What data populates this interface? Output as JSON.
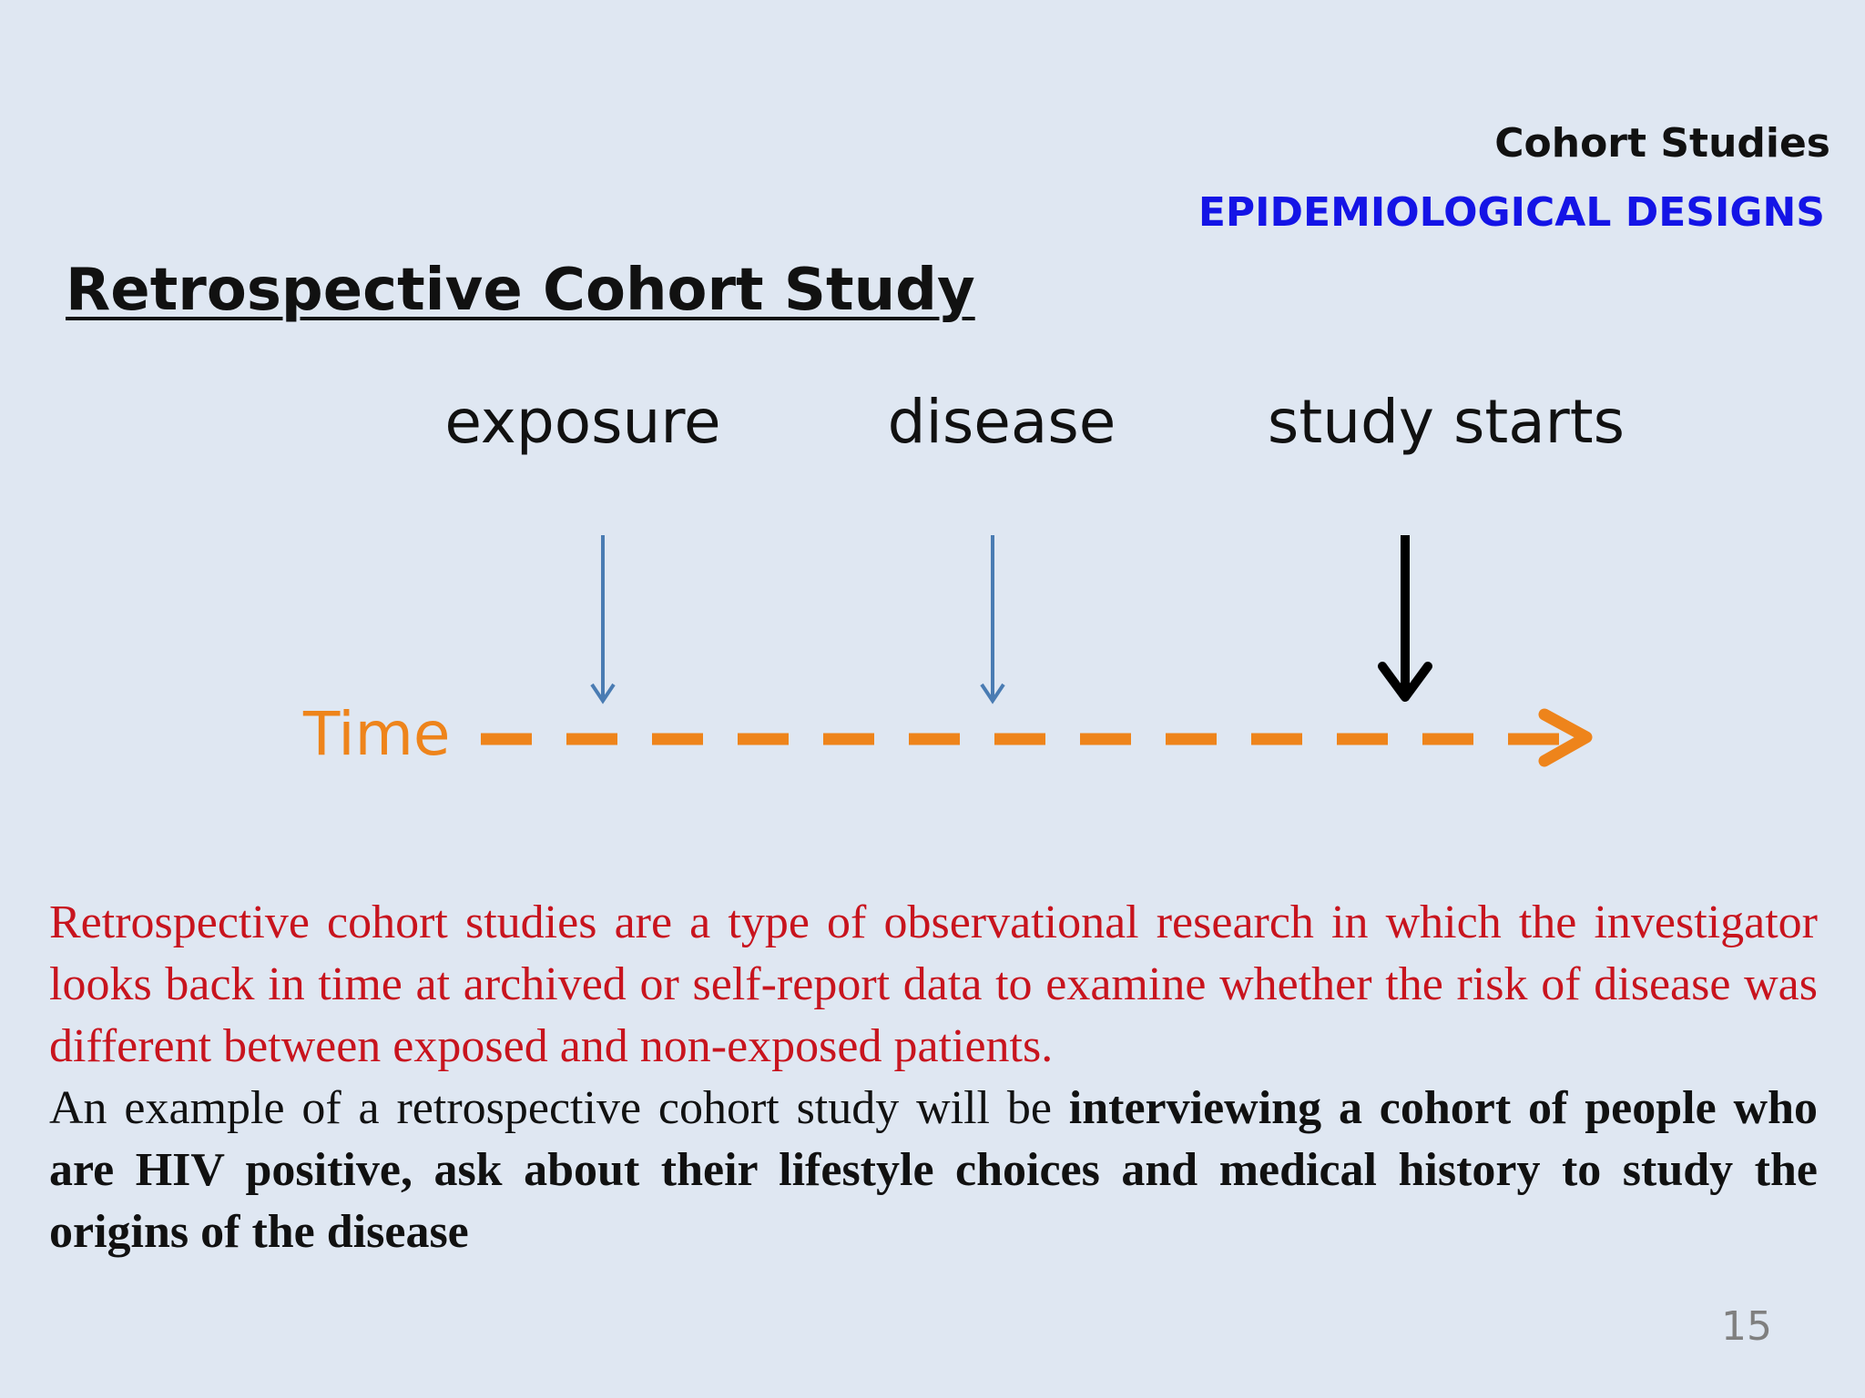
{
  "header": {
    "topic": "Cohort Studies",
    "section": "EPIDEMIOLOGICAL DESIGNS"
  },
  "title": "Retrospective Cohort Study",
  "timeline": {
    "axis_label": "Time",
    "stages": [
      {
        "label": "exposure",
        "arrow_color": "#4a7cb3",
        "emphasis": "normal"
      },
      {
        "label": "disease",
        "arrow_color": "#4a7cb3",
        "emphasis": "normal"
      },
      {
        "label": "study starts",
        "arrow_color": "#000000",
        "emphasis": "bold"
      }
    ],
    "line_color": "#ee841b",
    "line_style": "dashed"
  },
  "description": {
    "definition": "Retrospective cohort studies are a type of observational research in which the investigator looks back in time at archived or self-report data to examine whether the risk of disease was different between exposed and non-exposed patients.",
    "example_intro": "An example of a retrospective cohort study will be ",
    "example_bold": "interviewing a cohort of people who are HIV positive, ask about their lifestyle choices and medical history to study the origins of the disease"
  },
  "page_number": "15"
}
